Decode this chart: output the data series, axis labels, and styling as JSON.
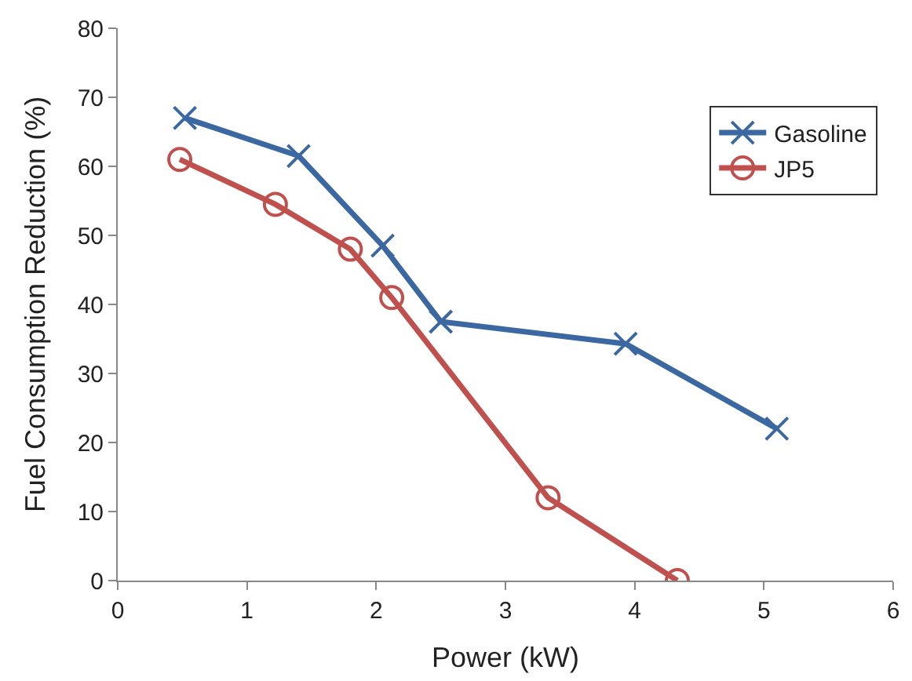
{
  "chart_data": {
    "type": "line",
    "xlabel": "Power (kW)",
    "ylabel": "Fuel Consumption Reduction (%)",
    "xlim": [
      0,
      6
    ],
    "xticks": [
      0,
      1,
      2,
      3,
      4,
      5,
      6
    ],
    "ylim": [
      0,
      80
    ],
    "yticks": [
      0,
      10,
      20,
      30,
      40,
      50,
      60,
      70,
      80
    ],
    "grid": false,
    "legend": "top right",
    "line_style": "solid",
    "series": [
      {
        "name": "Gasoline",
        "color": "#3c68a2",
        "marker": "cross",
        "x": [
          0.52,
          1.4,
          2.05,
          2.5,
          3.93,
          5.1
        ],
        "values": [
          67,
          61.5,
          48.5,
          37.5,
          34.3,
          22
        ]
      },
      {
        "name": "JP5",
        "color": "#c0504d",
        "marker": "circle",
        "x": [
          0.48,
          1.22,
          1.8,
          2.12,
          3.33,
          4.33
        ],
        "values": [
          61,
          54.5,
          48,
          41,
          12,
          0
        ]
      }
    ]
  }
}
